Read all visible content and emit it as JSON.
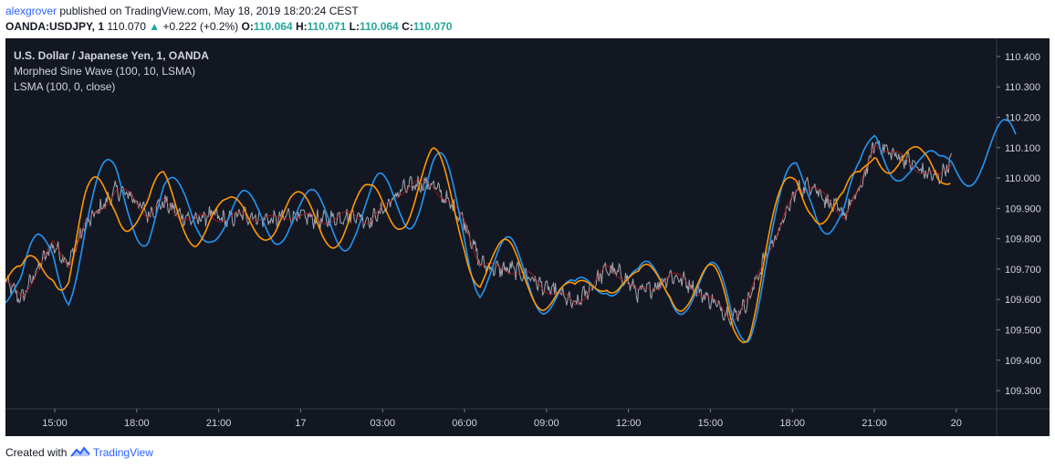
{
  "header": {
    "author": "alexgrover",
    "published_text": "published on TradingView.com, May 18, 2019 18:20:24 CEST",
    "symbol": "OANDA:USDJPY, 1",
    "last": "110.070",
    "change": "+0.222 (+0.2%)",
    "o_label": "O:",
    "o_val": "110.064",
    "h_label": "H:",
    "h_val": "110.071",
    "l_label": "L:",
    "l_val": "110.064",
    "c_label": "C:",
    "c_val": "110.070"
  },
  "legend": {
    "title": "U.S. Dollar / Japanese Yen, 1, OANDA",
    "ind1": "Morphed Sine Wave (100, 10, LSMA)",
    "ind2": "LSMA (100, 0, close)"
  },
  "footer": {
    "created": "Created with",
    "brand": "TradingView"
  },
  "colors": {
    "bg": "#131722",
    "price": "#b2b5be",
    "sine_fast": "#ff9800",
    "sine_slow": "#2196f3",
    "lsma": "#b71c1c"
  },
  "chart_data": {
    "type": "line",
    "y_ticks": [
      "110.400",
      "110.300",
      "110.200",
      "110.100",
      "110.000",
      "109.900",
      "109.800",
      "109.700",
      "109.600",
      "109.500",
      "109.400",
      "109.300"
    ],
    "x_ticks": [
      "15:00",
      "18:00",
      "21:00",
      "17",
      "03:00",
      "06:00",
      "09:00",
      "12:00",
      "15:00",
      "18:00",
      "21:00",
      "20"
    ],
    "ylim": [
      109.24,
      110.46
    ],
    "price_path": [
      [
        0,
        109.66
      ],
      [
        6,
        109.6
      ],
      [
        12,
        109.7
      ],
      [
        18,
        109.78
      ],
      [
        24,
        109.72
      ],
      [
        30,
        109.84
      ],
      [
        36,
        109.9
      ],
      [
        42,
        109.96
      ],
      [
        48,
        109.94
      ],
      [
        54,
        109.88
      ],
      [
        60,
        109.92
      ],
      [
        66,
        109.88
      ],
      [
        72,
        109.86
      ],
      [
        78,
        109.88
      ],
      [
        84,
        109.86
      ],
      [
        90,
        109.88
      ],
      [
        96,
        109.87
      ],
      [
        102,
        109.86
      ],
      [
        108,
        109.88
      ],
      [
        114,
        109.87
      ],
      [
        120,
        109.86
      ],
      [
        126,
        109.87
      ],
      [
        132,
        109.88
      ],
      [
        138,
        109.86
      ],
      [
        144,
        109.9
      ],
      [
        150,
        109.96
      ],
      [
        156,
        109.98
      ],
      [
        162,
        109.98
      ],
      [
        168,
        109.92
      ],
      [
        174,
        109.86
      ],
      [
        180,
        109.72
      ],
      [
        186,
        109.7
      ],
      [
        192,
        109.7
      ],
      [
        198,
        109.68
      ],
      [
        204,
        109.64
      ],
      [
        210,
        109.62
      ],
      [
        216,
        109.58
      ],
      [
        222,
        109.64
      ],
      [
        228,
        109.7
      ],
      [
        234,
        109.68
      ],
      [
        240,
        109.62
      ],
      [
        246,
        109.64
      ],
      [
        252,
        109.68
      ],
      [
        258,
        109.66
      ],
      [
        264,
        109.62
      ],
      [
        270,
        109.58
      ],
      [
        276,
        109.54
      ],
      [
        282,
        109.6
      ],
      [
        288,
        109.74
      ],
      [
        294,
        109.84
      ],
      [
        300,
        109.96
      ],
      [
        306,
        109.98
      ],
      [
        312,
        109.92
      ],
      [
        318,
        109.88
      ],
      [
        324,
        109.96
      ],
      [
        330,
        110.12
      ],
      [
        336,
        110.08
      ],
      [
        342,
        110.06
      ],
      [
        348,
        110.02
      ],
      [
        354,
        110.0
      ],
      [
        359,
        110.06
      ]
    ],
    "series": [
      {
        "name": "Morphed Sine Wave (100, 10, LSMA)",
        "phase_ref": [
          [
            0,
            109.62
          ],
          [
            360,
            110.05
          ]
        ]
      },
      {
        "name": "LSMA (100, 0, close)"
      }
    ]
  }
}
